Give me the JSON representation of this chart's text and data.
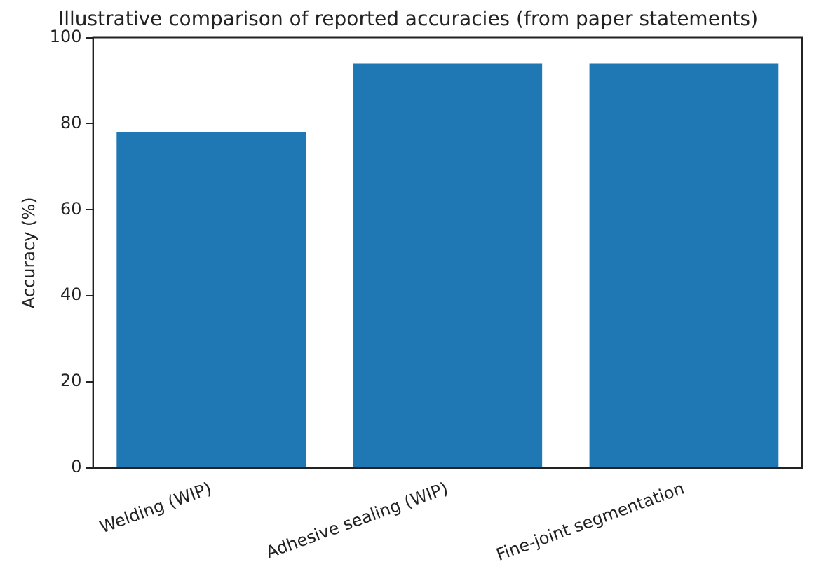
{
  "chart_data": {
    "type": "bar",
    "title": "Illustrative comparison of reported accuracies (from paper statements)",
    "ylabel": "Accuracy (%)",
    "categories": [
      "Welding (WIP)",
      "Adhesive sealing (WIP)",
      "Fine-joint segmentation"
    ],
    "values": [
      78,
      94,
      94
    ],
    "color": "#1f77b4",
    "ylim": [
      0,
      100
    ],
    "yticks": [
      0,
      20,
      40,
      60,
      80,
      100
    ],
    "grid": false,
    "legend": false
  }
}
